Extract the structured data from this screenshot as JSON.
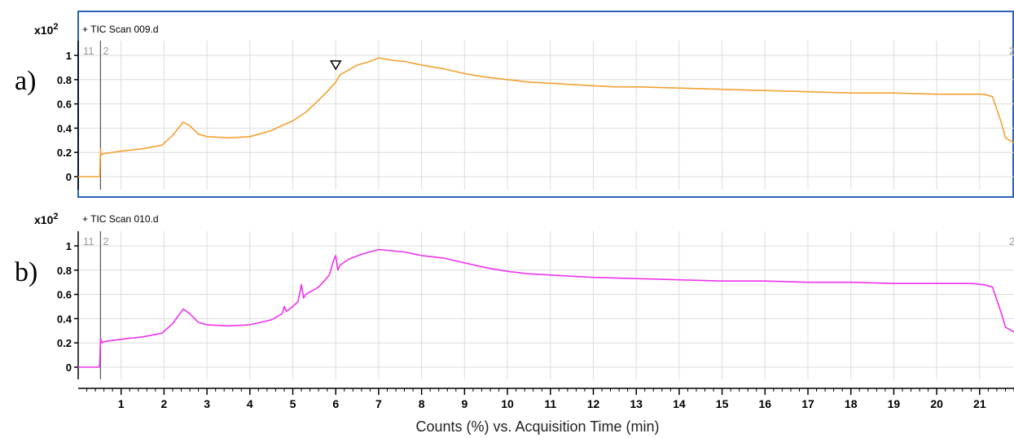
{
  "panels": [
    {
      "id": "a",
      "panel_label": "a)",
      "scale_label": "x10",
      "scale_exp": "2",
      "trace_title": "+ TIC Scan 009.d",
      "marker_labels": [
        "11",
        "2"
      ],
      "marker_right_label": "2",
      "color": "#f5a030",
      "selected": true,
      "frame_color": "#2a62b8"
    },
    {
      "id": "b",
      "panel_label": "b)",
      "scale_label": "x10",
      "scale_exp": "2",
      "trace_title": "+ TIC Scan 010.d",
      "marker_labels": [
        "11",
        "2"
      ],
      "marker_right_label": "2",
      "color": "#ee33ee",
      "selected": false
    }
  ],
  "chart_data": [
    {
      "type": "line",
      "title": "+ TIC Scan 009.d",
      "xlabel": "Counts (%) vs. Acquisition Time (min)",
      "ylabel": "",
      "y_scale_note": "x10^2",
      "xlim": [
        0,
        21.8
      ],
      "ylim": [
        -0.1,
        1.1
      ],
      "x_ticks": [
        1,
        2,
        3,
        4,
        5,
        6,
        7,
        8,
        9,
        10,
        11,
        12,
        13,
        14,
        15,
        16,
        17,
        18,
        19,
        20,
        21
      ],
      "y_ticks": [
        0,
        0.2,
        0.4,
        0.6,
        0.8,
        1
      ],
      "y_tick_labels": [
        "0",
        "0.2",
        "0.4",
        "0.6",
        "0.8",
        "1"
      ],
      "grid": true,
      "marker_line_x": 0.52,
      "peak_marker": {
        "x": 6.0,
        "y": 0.86,
        "shape": "open-triangle-down"
      },
      "series": [
        {
          "color": "#f5a030",
          "x": [
            0,
            0.5,
            0.52,
            0.53,
            0.6,
            0.8,
            1.0,
            1.5,
            1.95,
            2.2,
            2.45,
            2.6,
            2.8,
            3.0,
            3.5,
            4.0,
            4.5,
            4.8,
            5.0,
            5.3,
            5.6,
            5.85,
            6.0,
            6.1,
            6.3,
            6.5,
            6.8,
            7.0,
            7.3,
            7.6,
            8.0,
            8.5,
            9.0,
            9.5,
            10.0,
            10.5,
            11.0,
            11.5,
            12.0,
            12.5,
            13.0,
            14.0,
            15.0,
            16.0,
            17.0,
            18.0,
            19.0,
            20.0,
            20.8,
            21.1,
            21.3,
            21.5,
            21.6,
            21.7,
            21.8
          ],
          "y": [
            0.0,
            0.0,
            0.23,
            0.18,
            0.19,
            0.2,
            0.21,
            0.23,
            0.26,
            0.34,
            0.45,
            0.42,
            0.35,
            0.33,
            0.32,
            0.33,
            0.38,
            0.43,
            0.46,
            0.53,
            0.63,
            0.72,
            0.78,
            0.84,
            0.88,
            0.92,
            0.95,
            0.98,
            0.96,
            0.95,
            0.92,
            0.89,
            0.85,
            0.82,
            0.8,
            0.78,
            0.77,
            0.76,
            0.75,
            0.74,
            0.74,
            0.73,
            0.72,
            0.71,
            0.7,
            0.69,
            0.69,
            0.68,
            0.68,
            0.68,
            0.66,
            0.45,
            0.32,
            0.3,
            0.28
          ]
        }
      ]
    },
    {
      "type": "line",
      "title": "+ TIC Scan 010.d",
      "xlabel": "Counts (%) vs. Acquisition Time (min)",
      "ylabel": "",
      "y_scale_note": "x10^2",
      "xlim": [
        0,
        21.8
      ],
      "ylim": [
        -0.1,
        1.1
      ],
      "x_ticks": [
        1,
        2,
        3,
        4,
        5,
        6,
        7,
        8,
        9,
        10,
        11,
        12,
        13,
        14,
        15,
        16,
        17,
        18,
        19,
        20,
        21
      ],
      "y_ticks": [
        0,
        0.2,
        0.4,
        0.6,
        0.8,
        1
      ],
      "y_tick_labels": [
        "0",
        "0.2",
        "0.4",
        "0.6",
        "0.8",
        "1"
      ],
      "grid": true,
      "marker_line_x": 0.52,
      "series": [
        {
          "color": "#ee33ee",
          "x": [
            0,
            0.48,
            0.5,
            0.52,
            0.55,
            0.6,
            0.8,
            1.0,
            1.5,
            1.95,
            2.2,
            2.45,
            2.6,
            2.8,
            3.0,
            3.5,
            4.0,
            4.5,
            4.75,
            4.8,
            4.85,
            5.0,
            5.12,
            5.2,
            5.25,
            5.3,
            5.6,
            5.85,
            5.95,
            6.0,
            6.05,
            6.1,
            6.3,
            6.6,
            7.0,
            7.3,
            7.6,
            8.0,
            8.5,
            9.0,
            9.5,
            10.0,
            10.5,
            11.0,
            11.5,
            12.0,
            13.0,
            14.0,
            15.0,
            16.0,
            17.0,
            18.0,
            19.0,
            20.0,
            20.8,
            21.1,
            21.3,
            21.5,
            21.6,
            21.7,
            21.8
          ],
          "y": [
            0.0,
            0.0,
            0.02,
            0.24,
            0.2,
            0.21,
            0.22,
            0.23,
            0.25,
            0.28,
            0.36,
            0.48,
            0.44,
            0.37,
            0.35,
            0.34,
            0.35,
            0.39,
            0.44,
            0.5,
            0.46,
            0.5,
            0.54,
            0.68,
            0.57,
            0.6,
            0.66,
            0.76,
            0.88,
            0.92,
            0.8,
            0.84,
            0.89,
            0.93,
            0.97,
            0.96,
            0.95,
            0.92,
            0.9,
            0.86,
            0.82,
            0.79,
            0.77,
            0.76,
            0.75,
            0.74,
            0.73,
            0.72,
            0.71,
            0.71,
            0.7,
            0.7,
            0.69,
            0.69,
            0.69,
            0.68,
            0.66,
            0.45,
            0.33,
            0.31,
            0.29
          ]
        }
      ]
    }
  ],
  "x_axis": {
    "tick_labels": [
      "1",
      "2",
      "3",
      "4",
      "5",
      "6",
      "7",
      "8",
      "9",
      "10",
      "11",
      "12",
      "13",
      "14",
      "15",
      "16",
      "17",
      "18",
      "19",
      "20",
      "21"
    ],
    "title": "Counts (%) vs. Acquisition Time (min)"
  }
}
